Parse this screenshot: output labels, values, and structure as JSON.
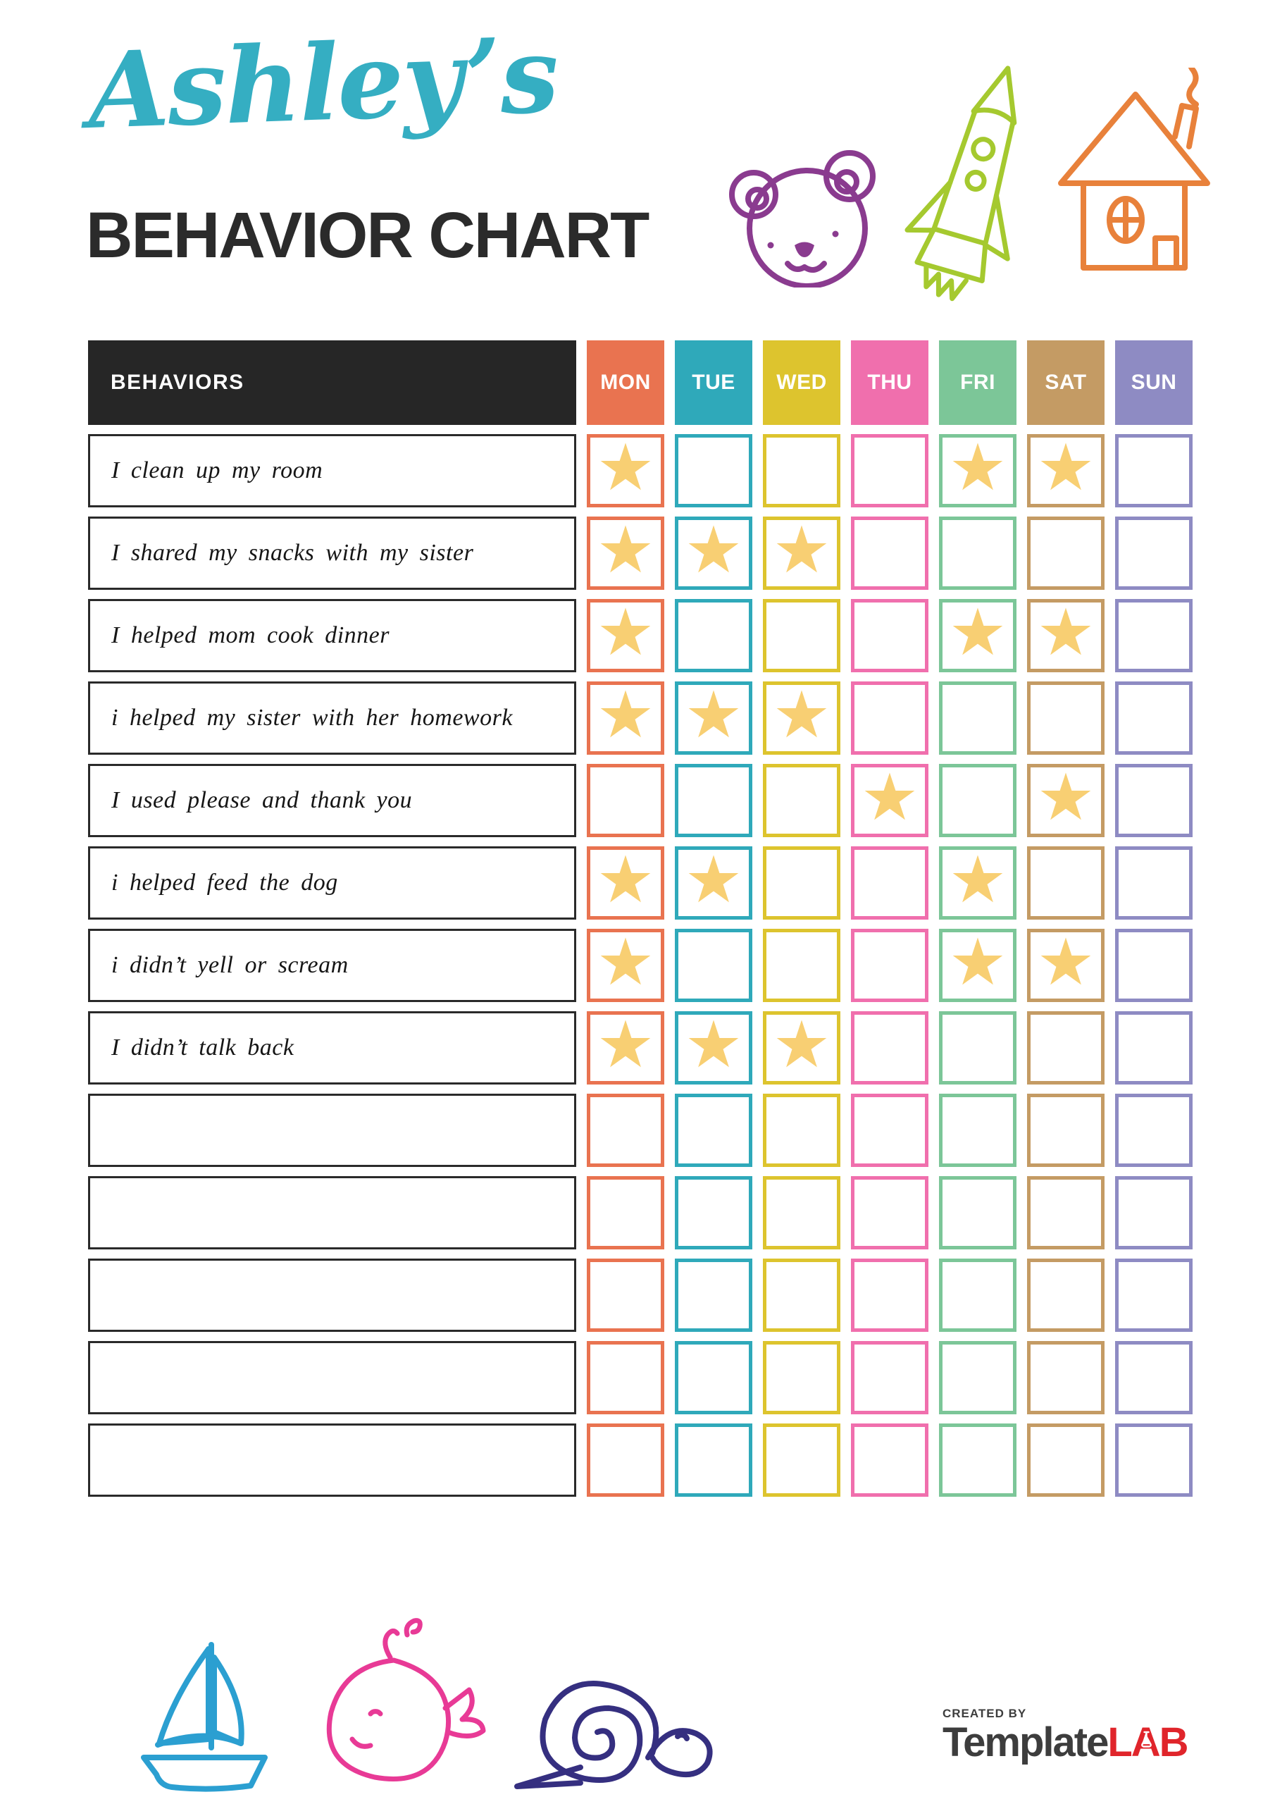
{
  "header": {
    "name": "Ashley’s",
    "title": "BEHAVIOR CHART"
  },
  "table": {
    "behaviors_header": "BEHAVIORS",
    "days": [
      {
        "label": "MON",
        "color": "#E97350"
      },
      {
        "label": "TUE",
        "color": "#2FA9BA"
      },
      {
        "label": "WED",
        "color": "#DDC42E"
      },
      {
        "label": "THU",
        "color": "#F06FAD"
      },
      {
        "label": "FRI",
        "color": "#7CC698"
      },
      {
        "label": "SAT",
        "color": "#C49B64"
      },
      {
        "label": "SUN",
        "color": "#8E8BC3"
      }
    ],
    "rows": [
      {
        "label": "I clean up my room",
        "stars": [
          1,
          0,
          0,
          0,
          1,
          1,
          0
        ]
      },
      {
        "label": "I shared my snacks with my sister",
        "stars": [
          1,
          1,
          1,
          0,
          0,
          0,
          0
        ]
      },
      {
        "label": "I helped mom cook dinner",
        "stars": [
          1,
          0,
          0,
          0,
          1,
          1,
          0
        ]
      },
      {
        "label": "i helped my sister with her homework",
        "stars": [
          1,
          1,
          1,
          0,
          0,
          0,
          0
        ]
      },
      {
        "label": "I used please and thank you",
        "stars": [
          0,
          0,
          0,
          1,
          0,
          1,
          0
        ]
      },
      {
        "label": "i helped feed the dog",
        "stars": [
          1,
          1,
          0,
          0,
          1,
          0,
          0
        ]
      },
      {
        "label": "i didn’t yell or scream",
        "stars": [
          1,
          0,
          0,
          0,
          1,
          1,
          0
        ]
      },
      {
        "label": "I didn’t talk back",
        "stars": [
          1,
          1,
          1,
          0,
          0,
          0,
          0
        ]
      },
      {
        "label": "",
        "stars": [
          0,
          0,
          0,
          0,
          0,
          0,
          0
        ]
      },
      {
        "label": "",
        "stars": [
          0,
          0,
          0,
          0,
          0,
          0,
          0
        ]
      },
      {
        "label": "",
        "stars": [
          0,
          0,
          0,
          0,
          0,
          0,
          0
        ]
      },
      {
        "label": "",
        "stars": [
          0,
          0,
          0,
          0,
          0,
          0,
          0
        ]
      },
      {
        "label": "",
        "stars": [
          0,
          0,
          0,
          0,
          0,
          0,
          0
        ]
      }
    ],
    "star_glyph": "★"
  },
  "icons": {
    "top": [
      "bear-icon",
      "rocket-icon",
      "house-icon"
    ],
    "bottom": [
      "sailboat-icon",
      "whale-icon",
      "snail-icon"
    ]
  },
  "brand": {
    "created_by": "CREATED BY",
    "name_dark": "Template",
    "name_red": "LAB",
    "flask_icon": "flask-icon"
  },
  "colors": {
    "script": "#35AEC2",
    "title": "#2B2B2B",
    "headbg": "#262626",
    "rowborder": "#2A2A2A",
    "star": "#F8CF73",
    "bear": "#8A3B8F",
    "rocket": "#A5C92F",
    "house": "#E8813B",
    "boat": "#2B9FD1",
    "whale": "#E83A96",
    "snail": "#352F80",
    "branddark": "#3D3D3D",
    "brandred": "#E0252B"
  }
}
